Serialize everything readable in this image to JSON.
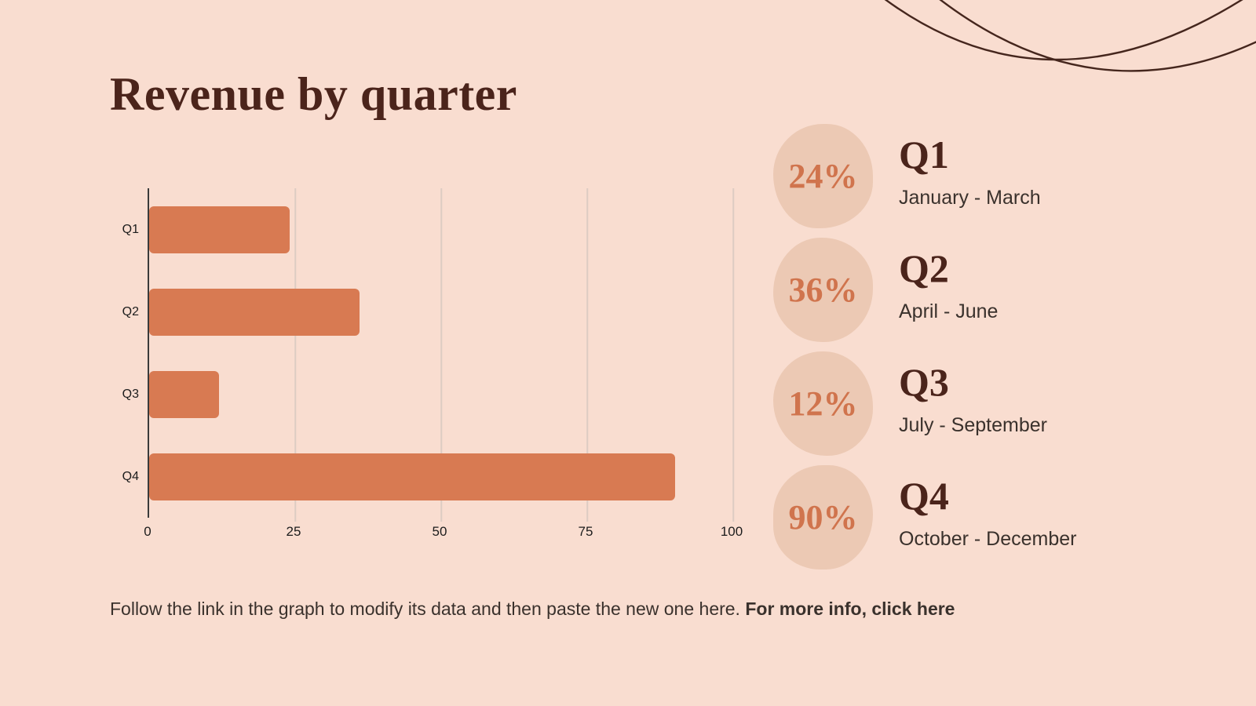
{
  "title": "Revenue by quarter",
  "colors": {
    "background": "#f9ddd0",
    "accent_bar": "#d87a52",
    "blob": "#ecc9b4",
    "heading_brown": "#4b241b",
    "percent_orange": "#d0744d",
    "body_text": "#3a312c",
    "gridline": "#ddccc2"
  },
  "chart_data": {
    "type": "bar",
    "orientation": "horizontal",
    "categories": [
      "Q1",
      "Q2",
      "Q3",
      "Q4"
    ],
    "values": [
      24,
      36,
      12,
      90
    ],
    "x_ticks": [
      0,
      25,
      50,
      75,
      100
    ],
    "xlim": [
      0,
      100
    ],
    "grid": true,
    "legend": false,
    "title": "",
    "xlabel": "",
    "ylabel": ""
  },
  "stats": {
    "items": [
      {
        "pct": "24%",
        "label": "Q1",
        "range": "January - March"
      },
      {
        "pct": "36%",
        "label": "Q2",
        "range": "April - June"
      },
      {
        "pct": "12%",
        "label": "Q3",
        "range": "July - September"
      },
      {
        "pct": "90%",
        "label": "Q4",
        "range": "October - December"
      }
    ]
  },
  "footer": {
    "text": "Follow the link in the graph to modify its data and then paste the new one here.",
    "bold_text": "For more info, click here"
  }
}
